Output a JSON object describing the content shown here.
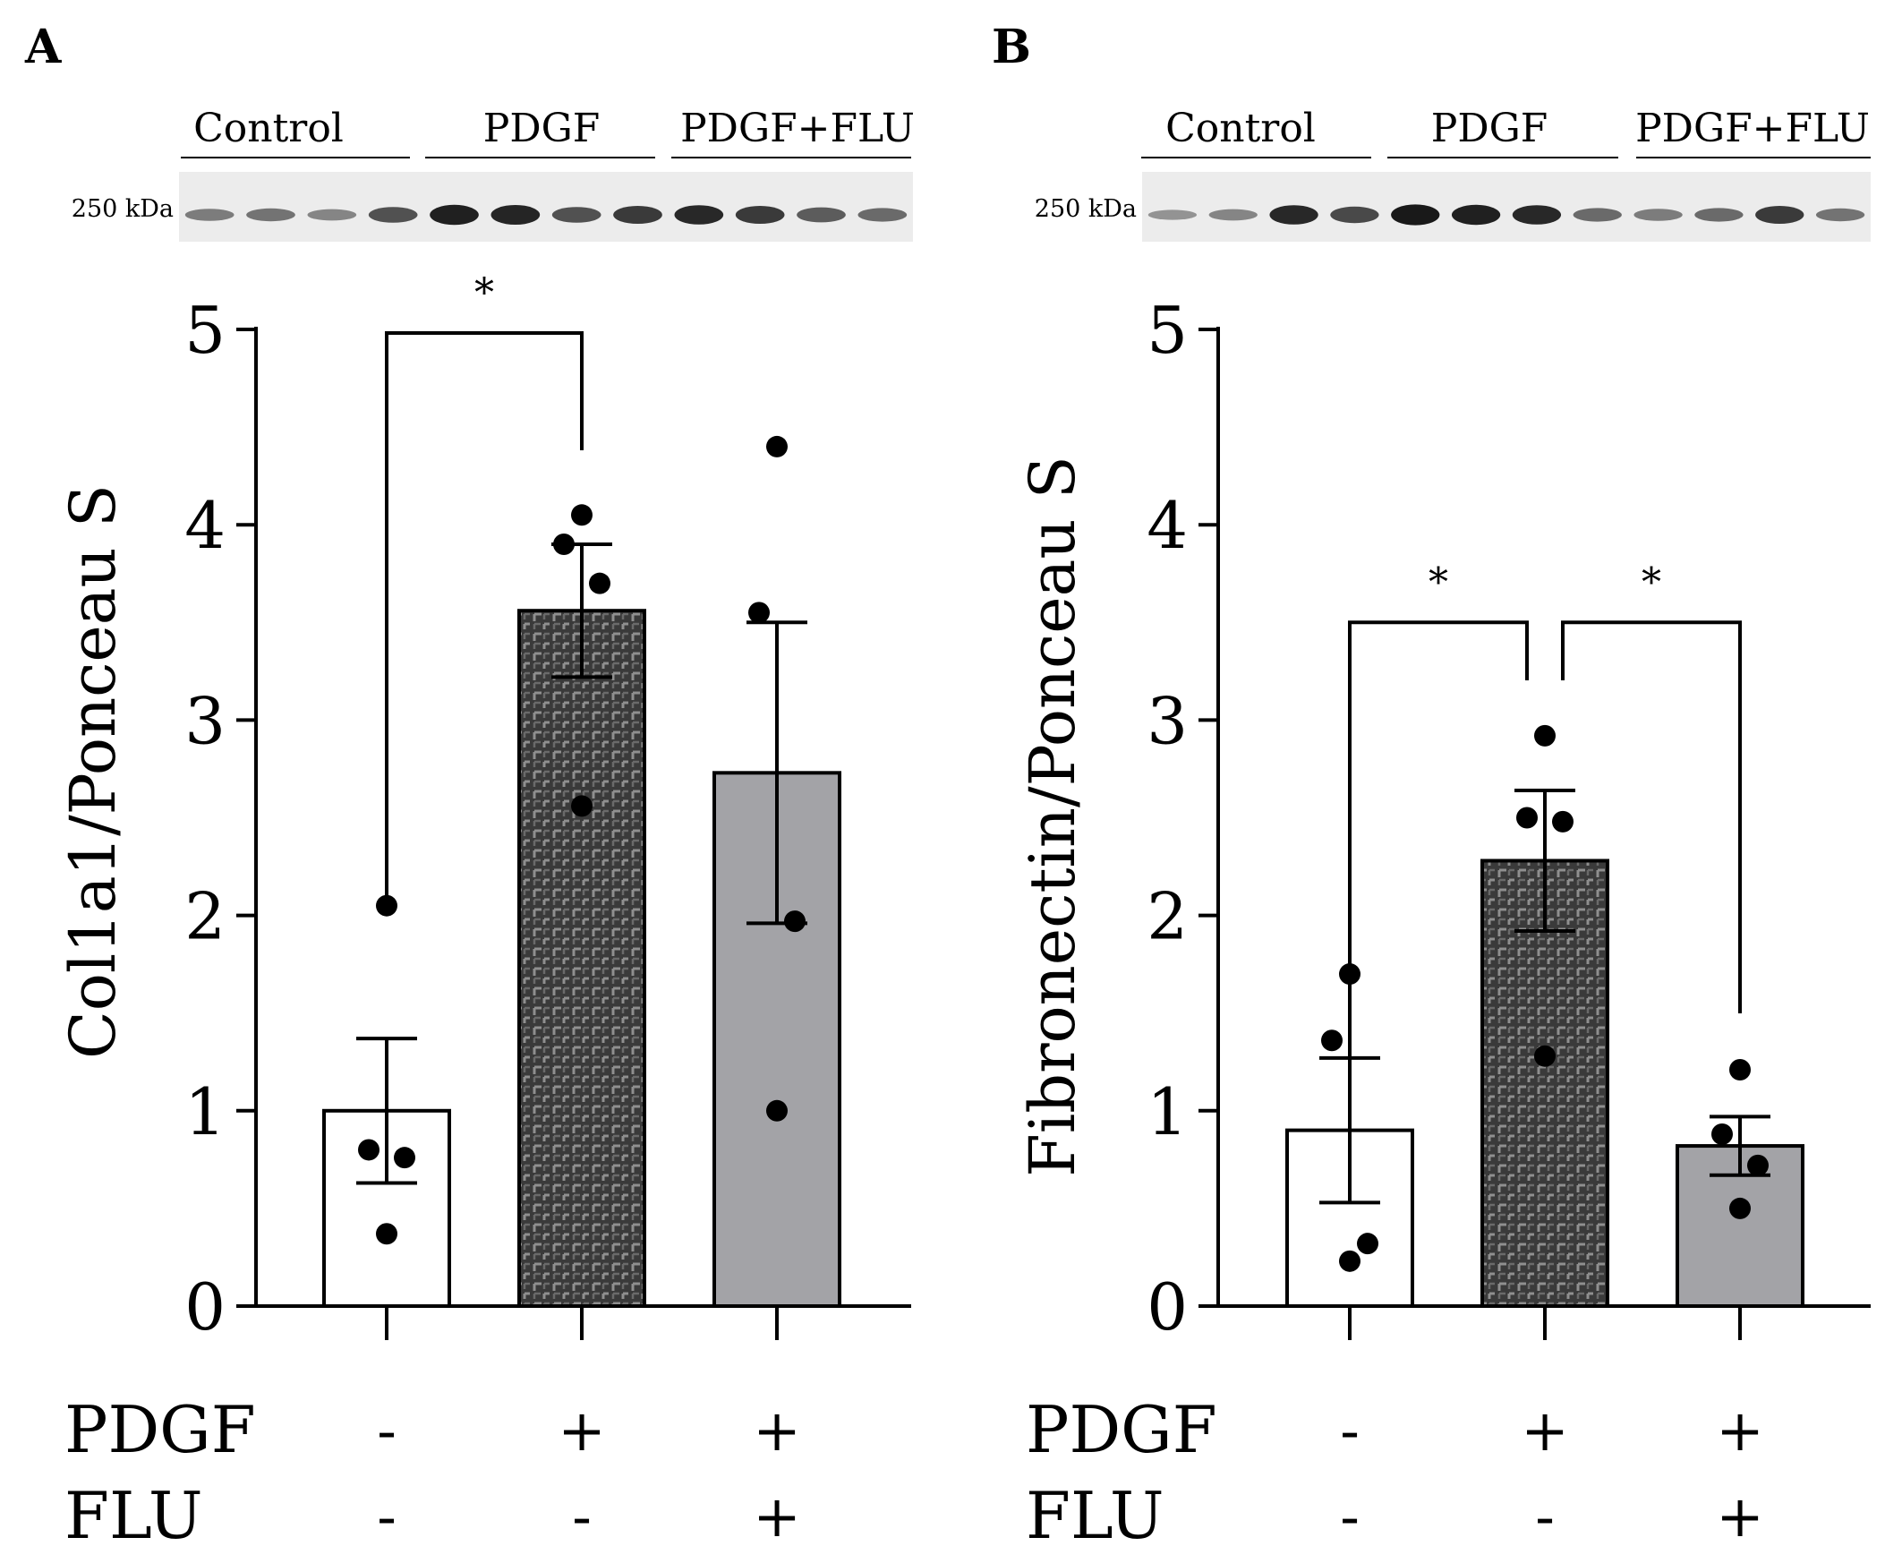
{
  "colors": {
    "axis": "#000000",
    "bar_control": "#ffffff",
    "bar_pdgf_base": "#3a3a3a",
    "bar_pdgf_pattern": "#8a8a8a",
    "bar_flu": "#a3a3a7",
    "point": "#000000",
    "blot_bg": "#ececec",
    "band": "#101010"
  },
  "chart_data": [
    {
      "panel_label": "A",
      "type": "bar",
      "ylabel": "Col1a1/Ponceau S",
      "ylim": [
        0,
        5
      ],
      "yticks": [
        "0",
        "1",
        "2",
        "3",
        "4",
        "5"
      ],
      "categories": [
        "Control",
        "PDGF",
        "PDGF+FLU"
      ],
      "means": [
        1.0,
        3.56,
        2.73
      ],
      "sem": [
        0.37,
        0.34,
        0.77
      ],
      "points": [
        [
          2.05,
          0.8,
          0.76,
          0.37
        ],
        [
          4.05,
          3.9,
          3.7,
          2.56
        ],
        [
          4.4,
          3.55,
          1.97,
          1.0
        ]
      ],
      "bar_styles": [
        "control",
        "pdgf",
        "flu"
      ],
      "significance": [
        {
          "from": 0,
          "to": 1,
          "label": "*",
          "y": 5.0
        }
      ],
      "table": {
        "rows": [
          {
            "label": "PDGF",
            "values": [
              "-",
              "+",
              "+"
            ]
          },
          {
            "label": "FLU",
            "values": [
              "-",
              "-",
              "+"
            ]
          }
        ]
      },
      "blot": {
        "group_labels": [
          "Control",
          "PDGF",
          "PDGF+FLU"
        ],
        "marker_label": "250 kDa",
        "band_intensities": [
          0.35,
          0.4,
          0.3,
          0.6,
          0.9,
          0.88,
          0.6,
          0.75,
          0.85,
          0.75,
          0.55,
          0.45
        ]
      }
    },
    {
      "panel_label": "B",
      "type": "bar",
      "ylabel": "Fibronectin/Ponceau S",
      "ylim": [
        0,
        5
      ],
      "yticks": [
        "0",
        "1",
        "2",
        "3",
        "4",
        "5"
      ],
      "categories": [
        "Control",
        "PDGF",
        "PDGF+FLU"
      ],
      "means": [
        0.9,
        2.28,
        0.82
      ],
      "sem": [
        0.37,
        0.36,
        0.15
      ],
      "points": [
        [
          1.7,
          1.36,
          0.32,
          0.23
        ],
        [
          2.92,
          2.5,
          2.48,
          1.28
        ],
        [
          1.21,
          0.88,
          0.72,
          0.5
        ]
      ],
      "bar_styles": [
        "control",
        "pdgf",
        "flu"
      ],
      "significance": [
        {
          "from": 0,
          "to": 1,
          "label": "*",
          "y": 3.5
        },
        {
          "from": 1,
          "to": 2,
          "label": "*",
          "y": 3.5
        }
      ],
      "table": {
        "rows": [
          {
            "label": "PDGF",
            "values": [
              "-",
              "+",
              "+"
            ]
          },
          {
            "label": "FLU",
            "values": [
              "-",
              "-",
              "+"
            ]
          }
        ]
      },
      "blot": {
        "group_labels": [
          "Control",
          "PDGF",
          "PDGF+FLU"
        ],
        "marker_label": "250 kDa",
        "band_intensities": [
          0.2,
          0.3,
          0.85,
          0.65,
          0.95,
          0.9,
          0.85,
          0.45,
          0.35,
          0.45,
          0.75,
          0.4
        ]
      }
    }
  ]
}
